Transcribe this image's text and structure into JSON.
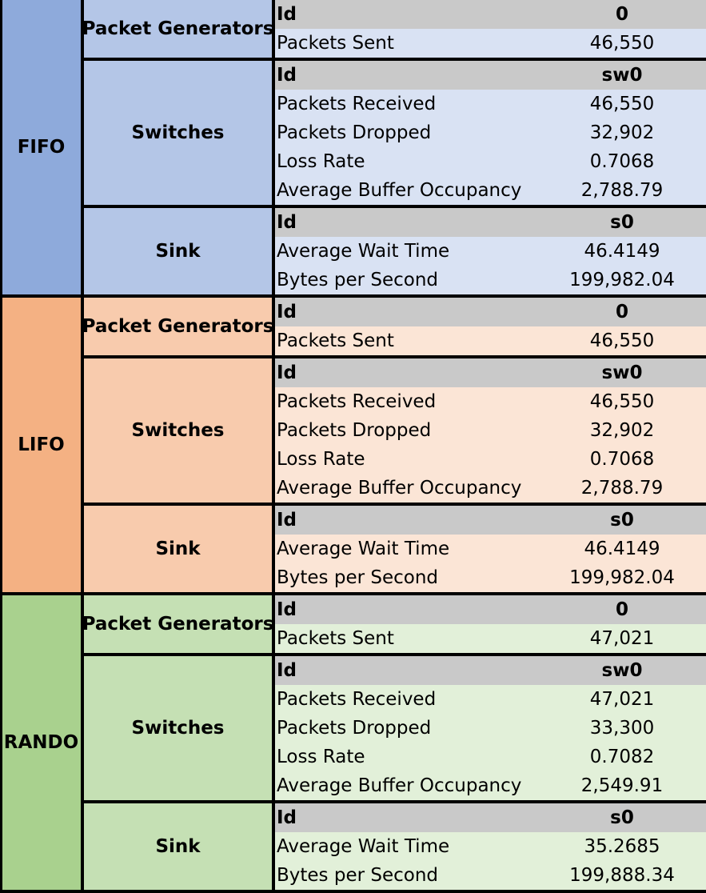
{
  "policies": [
    {
      "name": "FIFO",
      "colors": {
        "policy": "#8eaadb",
        "component": "#b4c6e7",
        "row": "#d9e2f3"
      },
      "components": [
        {
          "name": "Packet Generators",
          "rows": [
            {
              "label": "Id",
              "value": "0",
              "header": true
            },
            {
              "label": "Packets Sent",
              "value": "46,550"
            }
          ]
        },
        {
          "name": "Switches",
          "rows": [
            {
              "label": "Id",
              "value": "sw0",
              "header": true
            },
            {
              "label": "Packets Received",
              "value": "46,550"
            },
            {
              "label": "Packets Dropped",
              "value": "32,902"
            },
            {
              "label": "Loss Rate",
              "value": "0.7068"
            },
            {
              "label": "Average Buffer Occupancy",
              "value": "2,788.79"
            }
          ]
        },
        {
          "name": "Sink",
          "rows": [
            {
              "label": "Id",
              "value": "s0",
              "header": true
            },
            {
              "label": "Average Wait Time",
              "value": "46.4149"
            },
            {
              "label": "Bytes per Second",
              "value": "199,982.04"
            }
          ]
        }
      ]
    },
    {
      "name": "LIFO",
      "colors": {
        "policy": "#f4b183",
        "component": "#f8cbad",
        "row": "#fbe5d6"
      },
      "components": [
        {
          "name": "Packet Generators",
          "rows": [
            {
              "label": "Id",
              "value": "0",
              "header": true
            },
            {
              "label": "Packets Sent",
              "value": "46,550"
            }
          ]
        },
        {
          "name": "Switches",
          "rows": [
            {
              "label": "Id",
              "value": "sw0",
              "header": true
            },
            {
              "label": "Packets Received",
              "value": "46,550"
            },
            {
              "label": "Packets Dropped",
              "value": "32,902"
            },
            {
              "label": "Loss Rate",
              "value": "0.7068"
            },
            {
              "label": "Average Buffer Occupancy",
              "value": "2,788.79"
            }
          ]
        },
        {
          "name": "Sink",
          "rows": [
            {
              "label": "Id",
              "value": "s0",
              "header": true
            },
            {
              "label": "Average Wait Time",
              "value": "46.4149"
            },
            {
              "label": "Bytes per Second",
              "value": "199,982.04"
            }
          ]
        }
      ]
    },
    {
      "name": "RANDO",
      "colors": {
        "policy": "#a9d18e",
        "component": "#c5e0b4",
        "row": "#e2f0d9"
      },
      "components": [
        {
          "name": "Packet Generators",
          "rows": [
            {
              "label": "Id",
              "value": "0",
              "header": true
            },
            {
              "label": "Packets Sent",
              "value": "47,021"
            }
          ]
        },
        {
          "name": "Switches",
          "rows": [
            {
              "label": "Id",
              "value": "sw0",
              "header": true
            },
            {
              "label": "Packets Received",
              "value": "47,021"
            },
            {
              "label": "Packets Dropped",
              "value": "33,300"
            },
            {
              "label": "Loss Rate",
              "value": "0.7082"
            },
            {
              "label": "Average Buffer Occupancy",
              "value": "2,549.91"
            }
          ]
        },
        {
          "name": "Sink",
          "rows": [
            {
              "label": "Id",
              "value": "s0",
              "header": true
            },
            {
              "label": "Average Wait Time",
              "value": "35.2685"
            },
            {
              "label": "Bytes per Second",
              "value": "199,888.34"
            }
          ]
        }
      ]
    }
  ]
}
